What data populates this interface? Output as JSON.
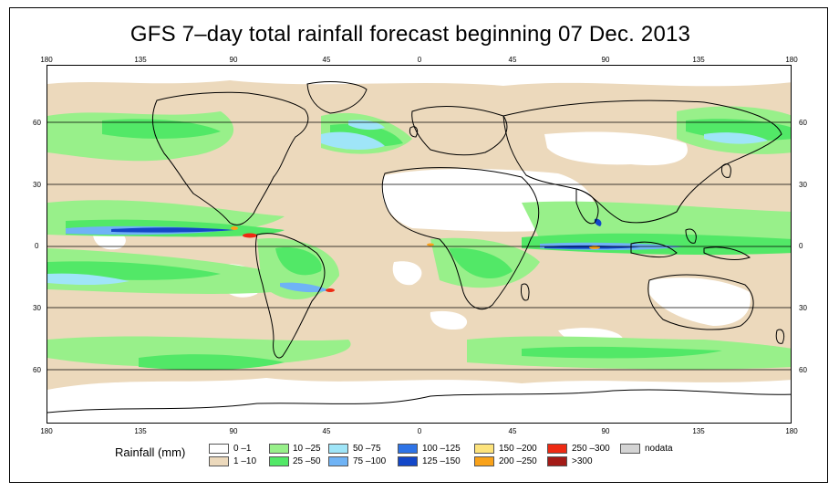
{
  "title": "GFS 7–day total rainfall forecast beginning 07 Dec. 2013",
  "top_lon_labels": [
    "180",
    "135",
    "90",
    "45",
    "0",
    "45",
    "90",
    "135",
    "180"
  ],
  "bottom_lon_labels": [
    "180",
    "135",
    "90",
    "45",
    "0",
    "45",
    "90",
    "135",
    "180"
  ],
  "lat_labels": [
    "60",
    "30",
    "0",
    "30",
    "60"
  ],
  "legend": {
    "title": "Rainfall (mm)",
    "items": [
      {
        "label": "0 –1",
        "color": "#ffffff"
      },
      {
        "label": "1 –10",
        "color": "#ecd9bc"
      },
      {
        "label": "10 –25",
        "color": "#98f08a"
      },
      {
        "label": "25 –50",
        "color": "#52e867"
      },
      {
        "label": "50 –75",
        "color": "#9fe5f8"
      },
      {
        "label": "75 –100",
        "color": "#6fb3f5"
      },
      {
        "label": "100 –125",
        "color": "#2e73e6"
      },
      {
        "label": "125 –150",
        "color": "#1347c8"
      },
      {
        "label": "150 –200",
        "color": "#fde37c"
      },
      {
        "label": "200 –250",
        "color": "#f9a21a"
      },
      {
        "label": "250 –300",
        "color": "#ee2a13"
      },
      {
        "label": ">300",
        "color": "#a31b17"
      },
      {
        "label": "nodata",
        "color": "#d4d4d4"
      }
    ]
  }
}
